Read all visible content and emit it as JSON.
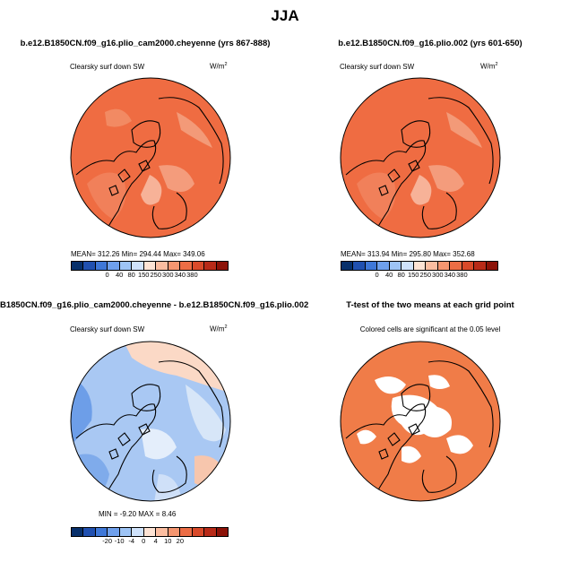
{
  "page": {
    "title": "JJA"
  },
  "panels": {
    "p1": {
      "title": "b.e12.B1850CN.f09_g16.plio_cam2000.cheyenne (yrs 867-888)",
      "subtitle": "Clearsky surf down SW",
      "units": "W/m",
      "units_sup": "2",
      "stats": "MEAN=  312.26    Min=  294.44    Max=  349.06"
    },
    "p2": {
      "title": "b.e12.B1850CN.f09_g16.plio.002 (yrs 601-650)",
      "subtitle": "Clearsky surf down SW",
      "units": "W/m",
      "units_sup": "2",
      "stats": "MEAN=  313.94    Min=  295.80    Max=  352.68"
    },
    "p3": {
      "title": "B1850CN.f09_g16.plio_cam2000.cheyenne - b.e12.B1850CN.f09_g16.plio.002",
      "subtitle": "Clearsky surf down SW",
      "units": "W/m",
      "units_sup": "2",
      "stats": "MIN =  -9.20  MAX =    8.46"
    },
    "p4": {
      "title": "T-test of the two means at each grid point",
      "subtitle": "Colored cells are significant at the 0.05 level"
    }
  },
  "colorbars": {
    "absolute": {
      "colors": [
        "#08306b",
        "#2050b0",
        "#3f78d8",
        "#6fa0ec",
        "#9ec4f5",
        "#cfe2fb",
        "#fde3d4",
        "#fbbda0",
        "#f59670",
        "#ec6d45",
        "#d94a2a",
        "#b82a18",
        "#8c1208"
      ],
      "labels": [
        "0",
        "40",
        "80",
        "150",
        "250",
        "300",
        "340",
        "380"
      ]
    },
    "difference": {
      "colors": [
        "#08306b",
        "#2050b0",
        "#3f78d8",
        "#6fa0ec",
        "#9ec4f5",
        "#cfe2fb",
        "#fde3d4",
        "#fbbda0",
        "#f59670",
        "#ec6d45",
        "#d94a2a",
        "#b82a18",
        "#8c1208"
      ],
      "labels": [
        "-20",
        "-10",
        "-4",
        "0",
        "4",
        "10",
        "20"
      ]
    }
  },
  "chart_data": [
    {
      "type": "heatmap",
      "projection": "north polar stereographic",
      "title": "b.e12.B1850CN.f09_g16.plio_cam2000.cheyenne (yrs 867-888)",
      "variable": "Clearsky surf down SW",
      "units": "W/m2",
      "mean": 312.26,
      "min": 294.44,
      "max": 349.06,
      "levels": [
        0,
        40,
        80,
        150,
        250,
        300,
        340,
        380
      ],
      "dominant_range": [
        300,
        340
      ]
    },
    {
      "type": "heatmap",
      "projection": "north polar stereographic",
      "title": "b.e12.B1850CN.f09_g16.plio.002 (yrs 601-650)",
      "variable": "Clearsky surf down SW",
      "units": "W/m2",
      "mean": 313.94,
      "min": 295.8,
      "max": 352.68,
      "levels": [
        0,
        40,
        80,
        150,
        250,
        300,
        340,
        380
      ],
      "dominant_range": [
        300,
        340
      ]
    },
    {
      "type": "heatmap",
      "projection": "north polar stereographic",
      "title": "B1850CN.f09_g16.plio_cam2000.cheyenne - b.e12.B1850CN.f09_g16.plio.002",
      "variable": "Clearsky surf down SW",
      "units": "W/m2",
      "min": -9.2,
      "max": 8.46,
      "levels": [
        -20,
        -10,
        -4,
        0,
        4,
        10,
        20
      ]
    },
    {
      "type": "heatmap",
      "projection": "north polar stereographic",
      "title": "T-test of the two means at each grid point",
      "note": "Colored cells are significant at the 0.05 level",
      "significance_level": 0.05
    }
  ]
}
